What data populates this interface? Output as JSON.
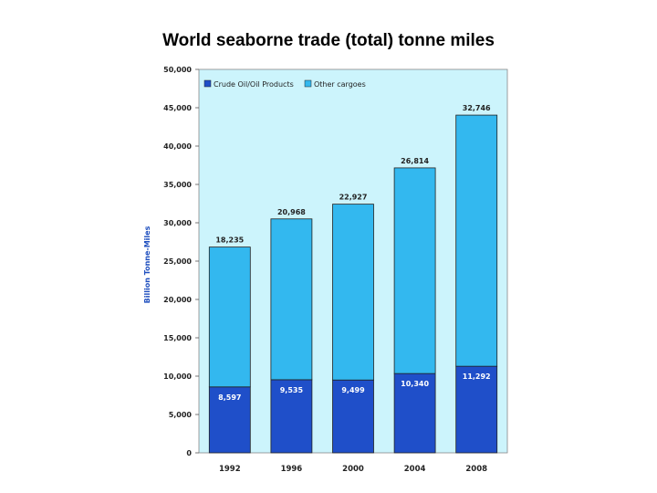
{
  "slide": {
    "title": "World seaborne trade (total) tonne miles"
  },
  "chart_data": {
    "type": "bar",
    "stacked": true,
    "title": "World seaborne trade (total) tonne miles",
    "xlabel": "",
    "ylabel": "Billion Tonne-Miles",
    "categories": [
      "1992",
      "1996",
      "2000",
      "2004",
      "2008"
    ],
    "series": [
      {
        "name": "Crude Oil/Oil Products",
        "values": [
          8597,
          9535,
          9499,
          10340,
          11292
        ],
        "color": "#1f4fc9"
      },
      {
        "name": "Other cargoes",
        "values": [
          18235,
          20968,
          22927,
          26814,
          32746
        ],
        "color": "#33b8ef"
      }
    ],
    "data_labels": {
      "Crude Oil/Oil Products": [
        "8,597",
        "9,535",
        "9,499",
        "10,340",
        "11,292"
      ],
      "Other cargoes": [
        "18,235",
        "20,968",
        "22,927",
        "26,814",
        "32,746"
      ]
    },
    "ylim": [
      0,
      50000
    ],
    "yticks": [
      0,
      5000,
      10000,
      15000,
      20000,
      25000,
      30000,
      35000,
      40000,
      45000,
      50000
    ],
    "ytick_labels": [
      "0",
      "5,000",
      "10,000",
      "15,000",
      "20,000",
      "25,000",
      "30,000",
      "35,000",
      "40,000",
      "45,000",
      "50,000"
    ],
    "plot_background": "#ccf4fc",
    "grid": false,
    "legend_position": "top-left"
  }
}
